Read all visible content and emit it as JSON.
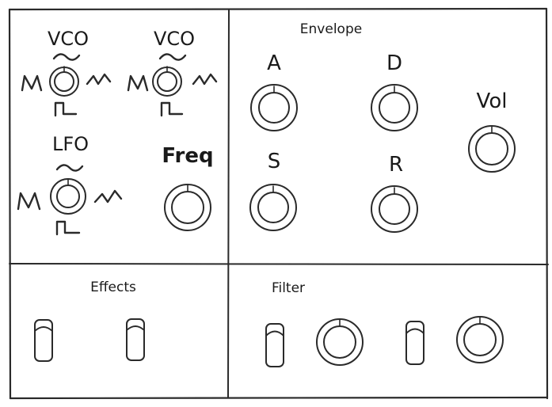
{
  "osc_panel": {
    "vco1": {
      "label": "VCO",
      "wave_top": "sine-wave-icon",
      "wave_left": "sawtooth-wave-icon",
      "wave_right": "triangle-wave-icon",
      "wave_bottom": "square-wave-icon"
    },
    "vco2": {
      "label": "VCO",
      "wave_top": "sine-wave-icon",
      "wave_left": "sawtooth-wave-icon",
      "wave_right": "triangle-wave-icon",
      "wave_bottom": "square-wave-icon"
    },
    "lfo": {
      "label": "LFO",
      "wave_top": "sine-wave-icon",
      "wave_left": "sawtooth-wave-icon",
      "wave_right": "triangle-wave-icon",
      "wave_bottom": "square-wave-icon"
    },
    "freq": {
      "label": "Freq"
    }
  },
  "envelope_panel": {
    "title": "Envelope",
    "attack": {
      "label": "A"
    },
    "decay": {
      "label": "D"
    },
    "sustain": {
      "label": "S"
    },
    "release": {
      "label": "R"
    },
    "volume": {
      "label": "Vol"
    }
  },
  "effects_panel": {
    "title": "Effects"
  },
  "filter_panel": {
    "title": "Filter"
  },
  "colors": {
    "ink": "#2a2a2a",
    "background": "#ffffff"
  }
}
